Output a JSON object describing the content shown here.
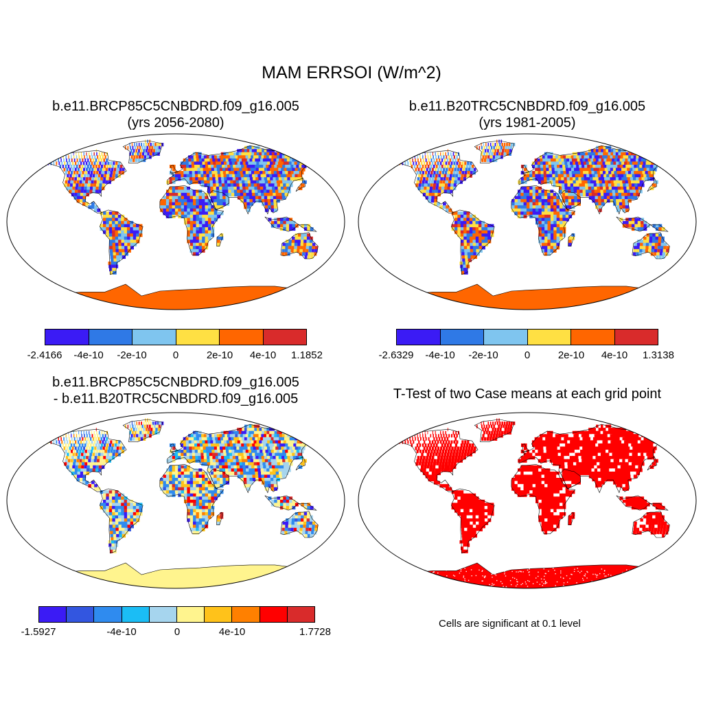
{
  "title": "MAM ERRSOI (W/m^2)",
  "panels": [
    {
      "id": "tl",
      "title_lines": [
        "b.e11.BRCP85C5CNBDRD.f09_g16.005",
        "(yrs 2056-2080)"
      ],
      "palette": "six",
      "antarctica_color": "#ff6600",
      "colorbar": {
        "colors": [
          "#3b1bf5",
          "#2f79e6",
          "#7fc5ef",
          "#ffe043",
          "#ff6600",
          "#d92b2b"
        ],
        "labels": [
          "-2.4166",
          "-4e-10",
          "-2e-10",
          "0",
          "2e-10",
          "4e-10",
          "1.1852"
        ]
      }
    },
    {
      "id": "tr",
      "title_lines": [
        "b.e11.B20TRC5CNBDRD.f09_g16.005",
        "(yrs 1981-2005)"
      ],
      "palette": "six",
      "antarctica_color": "#ff6600",
      "colorbar": {
        "colors": [
          "#3b1bf5",
          "#2f79e6",
          "#7fc5ef",
          "#ffe043",
          "#ff6600",
          "#d92b2b"
        ],
        "labels": [
          "-2.6329",
          "-4e-10",
          "-2e-10",
          "0",
          "2e-10",
          "4e-10",
          "1.3138"
        ]
      }
    },
    {
      "id": "bl",
      "title_lines": [
        "b.e11.BRCP85C5CNBDRD.f09_g16.005",
        "- b.e11.B20TRC5CNBDRD.f09_g16.005"
      ],
      "palette": "ten",
      "antarctica_color": "#fff48e",
      "colorbar": {
        "colors": [
          "#3b1bf5",
          "#3356e0",
          "#2f8bef",
          "#1bbdf5",
          "#a6d5ee",
          "#fff48e",
          "#ffc21a",
          "#ff8000",
          "#ff0000",
          "#d92b2b"
        ],
        "labels": [
          "-1.5927",
          "-4e-10",
          "0",
          "4e-10",
          "1.7728"
        ]
      }
    },
    {
      "id": "br",
      "title_lines": [
        "T-Test of two Case means at each grid point"
      ],
      "palette": "sig",
      "antarctica_color": "#ff0000",
      "note": "Cells are significant at 0.1 level"
    }
  ]
}
